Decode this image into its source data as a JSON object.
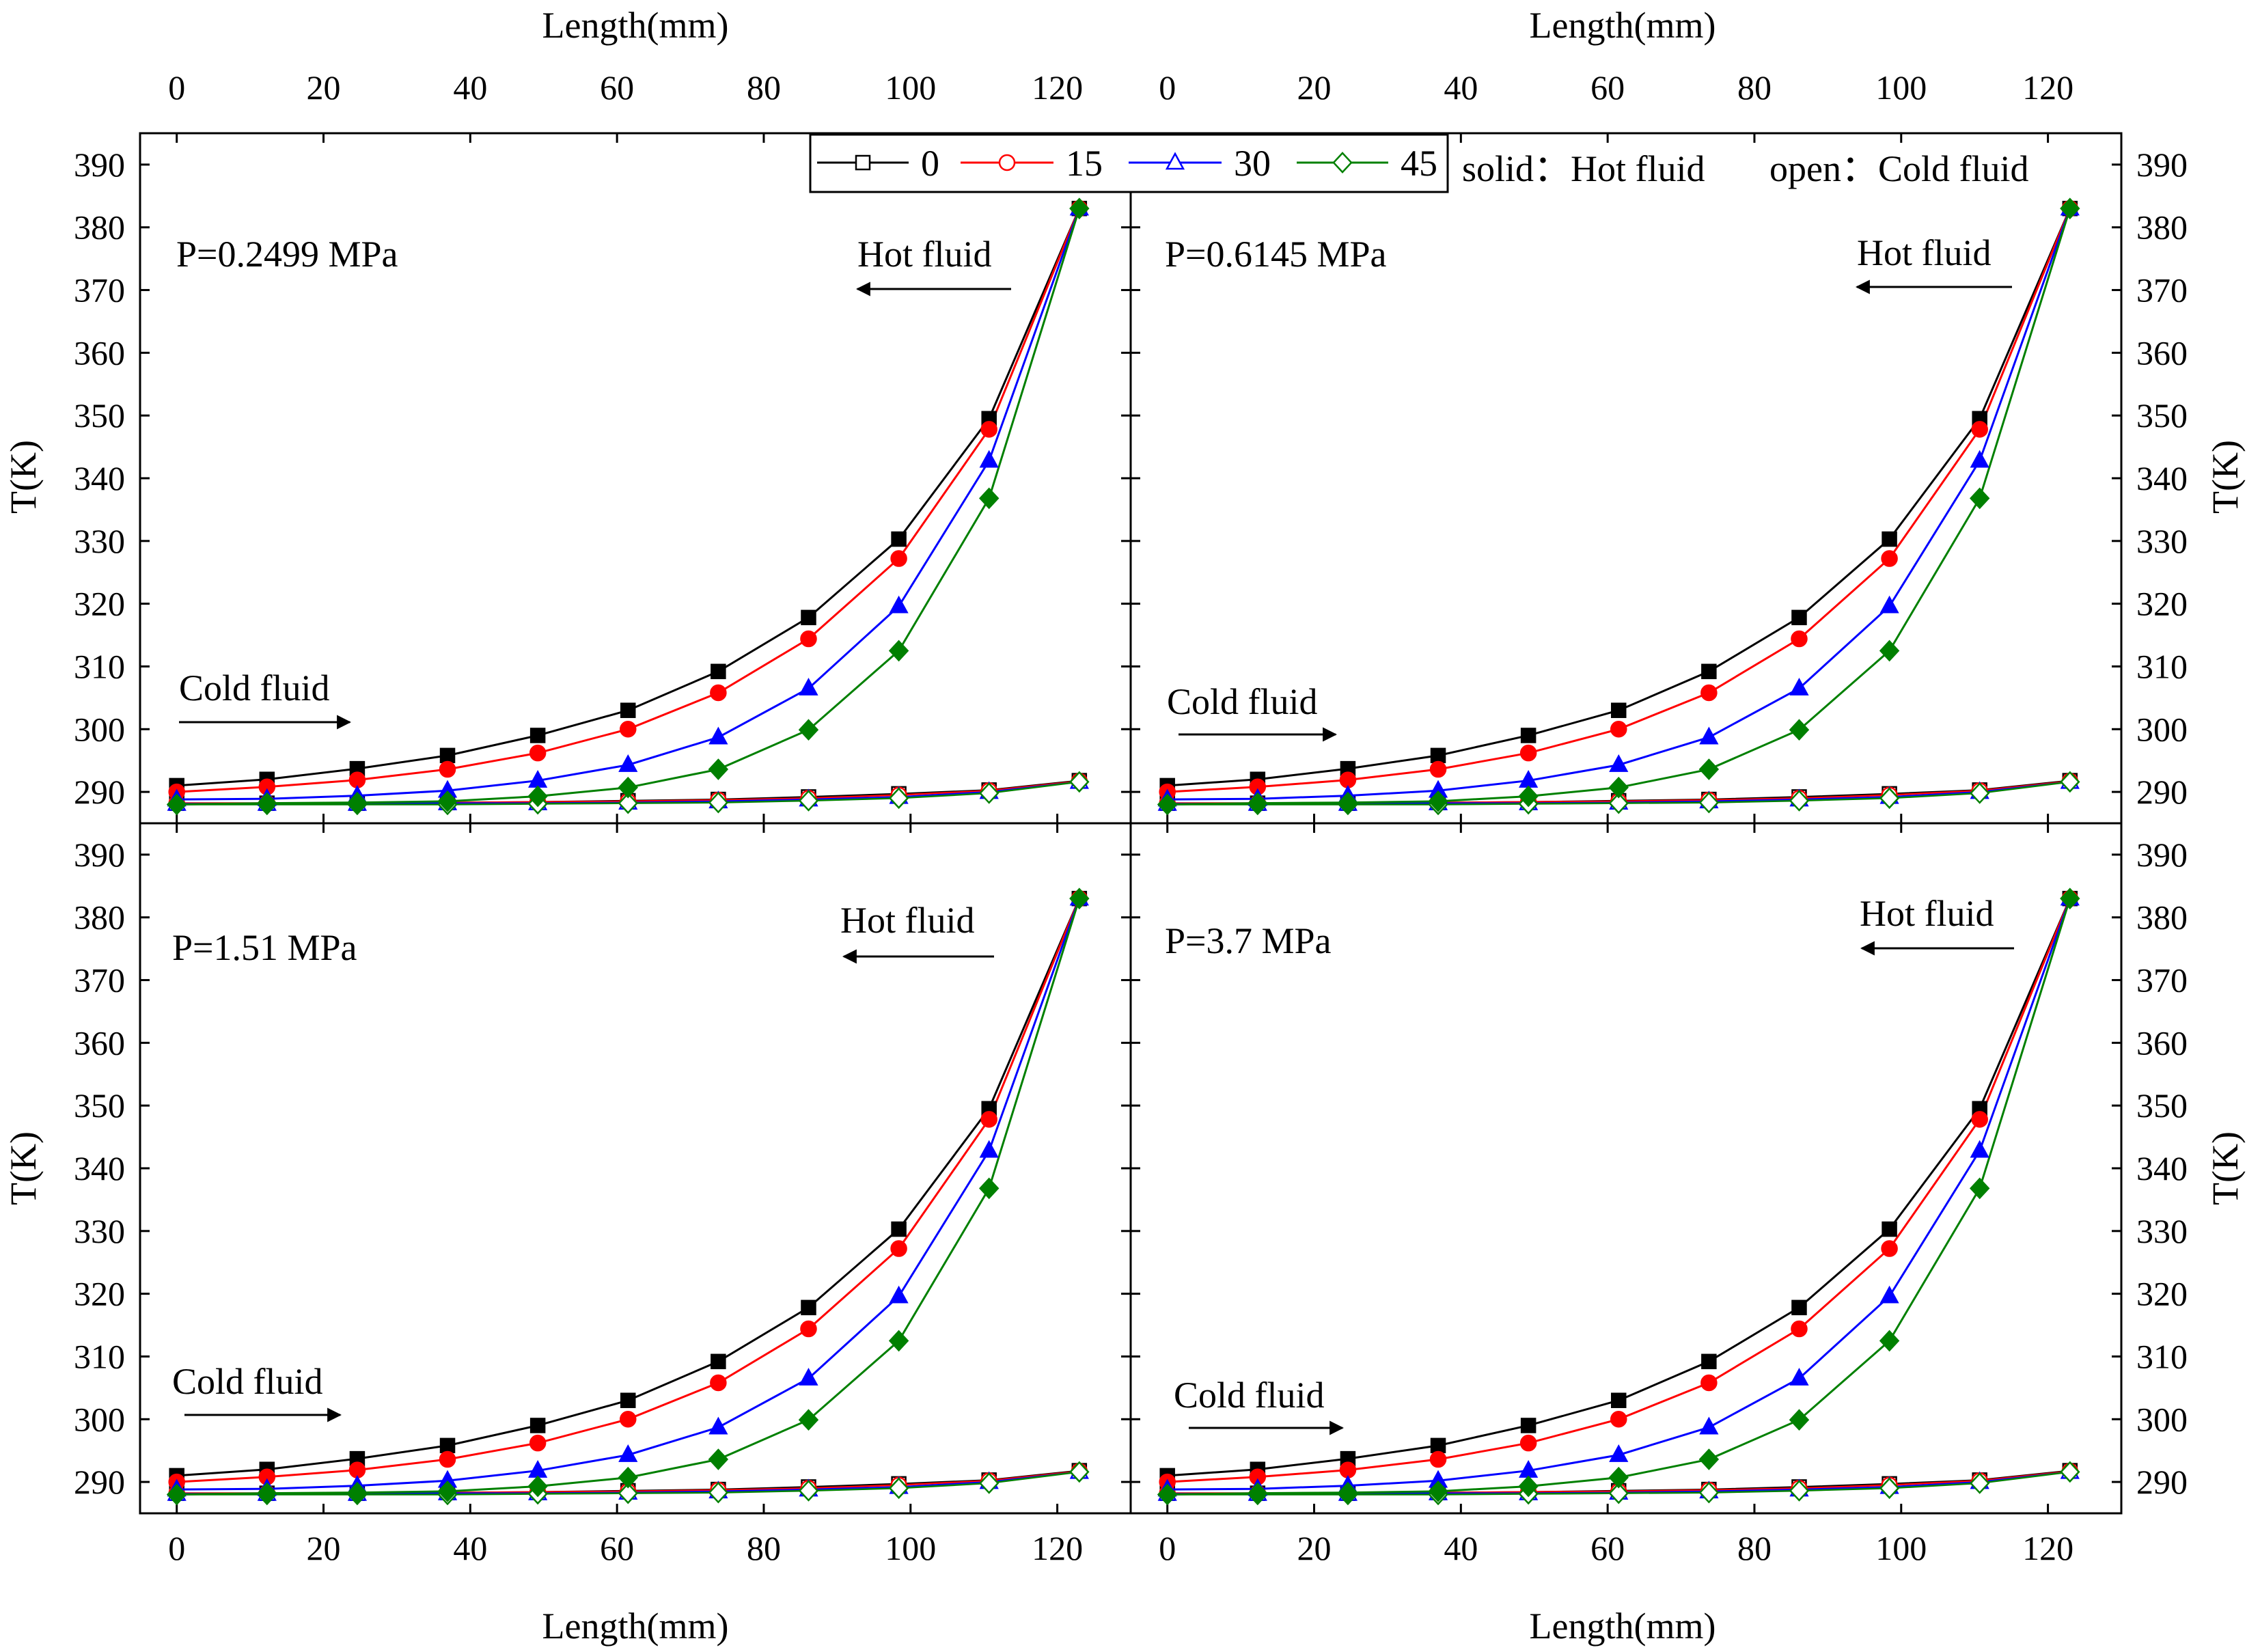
{
  "x_label": "Length(mm)",
  "y_label": "T(K)",
  "legend": {
    "entries": [
      "0",
      "15",
      "30",
      "45"
    ],
    "note_solid": "solid：Hot fluid",
    "note_open": "open：Cold fluid"
  },
  "colors": {
    "0": "#000000",
    "15": "#ff0000",
    "30": "#0000ff",
    "45": "#008000",
    "cold_line": "#4a8fa0"
  },
  "chart_data": {
    "type": "line",
    "xlim": [
      -5,
      130
    ],
    "ylim": [
      285,
      395
    ],
    "xticks": [
      0,
      20,
      40,
      60,
      80,
      100,
      120
    ],
    "yticks": [
      290,
      300,
      310,
      320,
      330,
      340,
      350,
      360,
      370,
      380,
      390
    ],
    "x": [
      0,
      12.3,
      24.6,
      36.9,
      49.2,
      61.5,
      73.8,
      86.1,
      98.4,
      110.7,
      123
    ],
    "panels": [
      {
        "label": "P=0.2499 MPa",
        "hot_label": "Hot fluid",
        "cold_label": "Cold fluid",
        "hot": [
          {
            "name": "0",
            "values": [
              291,
              292,
              293.7,
              295.8,
              299,
              303,
              309.2,
              317.8,
              330.3,
              349.5,
              383
            ]
          },
          {
            "name": "15",
            "values": [
              290,
              290.8,
              291.9,
              293.6,
              296.2,
              300,
              305.8,
              314.4,
              327.2,
              347.8,
              383
            ]
          },
          {
            "name": "30",
            "values": [
              288.8,
              288.9,
              289.4,
              290.2,
              291.8,
              294.3,
              298.7,
              306.5,
              319.6,
              342.8,
              383
            ]
          },
          {
            "name": "45",
            "values": [
              288,
              288.2,
              288.3,
              288.5,
              289.3,
              290.7,
              293.6,
              299.9,
              312.5,
              336.8,
              383
            ]
          }
        ],
        "cold": [
          {
            "name": "0",
            "values": [
              288.2,
              288.2,
              288.2,
              288.3,
              288.4,
              288.6,
              288.8,
              289.2,
              289.7,
              290.3,
              291.8
            ]
          },
          {
            "name": "15",
            "values": [
              288.2,
              288.2,
              288.2,
              288.3,
              288.4,
              288.5,
              288.7,
              289,
              289.5,
              290.2,
              291.7
            ]
          },
          {
            "name": "30",
            "values": [
              288.1,
              288.1,
              288.1,
              288.2,
              288.2,
              288.3,
              288.5,
              288.8,
              289.2,
              290,
              291.6
            ]
          },
          {
            "name": "45",
            "values": [
              288,
              288,
              288,
              288,
              288.1,
              288.2,
              288.3,
              288.6,
              289,
              289.8,
              291.6
            ]
          }
        ]
      },
      {
        "label": "P=0.6145 MPa",
        "hot_label": "Hot fluid",
        "cold_label": "Cold fluid",
        "hot": [
          {
            "name": "0",
            "values": [
              291,
              292,
              293.7,
              295.8,
              299,
              303,
              309.2,
              317.8,
              330.3,
              349.5,
              383
            ]
          },
          {
            "name": "15",
            "values": [
              290,
              290.8,
              291.9,
              293.6,
              296.2,
              300,
              305.8,
              314.4,
              327.2,
              347.8,
              383
            ]
          },
          {
            "name": "30",
            "values": [
              288.8,
              288.9,
              289.4,
              290.2,
              291.8,
              294.3,
              298.7,
              306.5,
              319.6,
              342.8,
              383
            ]
          },
          {
            "name": "45",
            "values": [
              288,
              288.2,
              288.3,
              288.5,
              289.3,
              290.7,
              293.6,
              299.9,
              312.5,
              336.8,
              383
            ]
          }
        ],
        "cold": [
          {
            "name": "0",
            "values": [
              288.2,
              288.2,
              288.2,
              288.3,
              288.4,
              288.6,
              288.8,
              289.2,
              289.7,
              290.3,
              291.8
            ]
          },
          {
            "name": "15",
            "values": [
              288.2,
              288.2,
              288.2,
              288.3,
              288.4,
              288.5,
              288.7,
              289,
              289.5,
              290.2,
              291.7
            ]
          },
          {
            "name": "30",
            "values": [
              288.1,
              288.1,
              288.1,
              288.2,
              288.2,
              288.3,
              288.5,
              288.8,
              289.2,
              290,
              291.6
            ]
          },
          {
            "name": "45",
            "values": [
              288,
              288,
              288,
              288,
              288.1,
              288.2,
              288.3,
              288.6,
              289,
              289.8,
              291.6
            ]
          }
        ]
      },
      {
        "label": "P=1.51 MPa",
        "hot_label": "Hot fluid",
        "cold_label": "Cold fluid",
        "hot": [
          {
            "name": "0",
            "values": [
              291,
              292,
              293.7,
              295.8,
              299,
              303,
              309.2,
              317.8,
              330.3,
              349.5,
              383
            ]
          },
          {
            "name": "15",
            "values": [
              290,
              290.8,
              291.9,
              293.6,
              296.2,
              300,
              305.8,
              314.4,
              327.2,
              347.8,
              383
            ]
          },
          {
            "name": "30",
            "values": [
              288.8,
              288.9,
              289.4,
              290.2,
              291.8,
              294.3,
              298.7,
              306.5,
              319.6,
              342.8,
              383
            ]
          },
          {
            "name": "45",
            "values": [
              288,
              288.2,
              288.3,
              288.5,
              289.3,
              290.7,
              293.6,
              299.9,
              312.5,
              336.8,
              383
            ]
          }
        ],
        "cold": [
          {
            "name": "0",
            "values": [
              288.2,
              288.2,
              288.2,
              288.3,
              288.4,
              288.6,
              288.8,
              289.2,
              289.7,
              290.3,
              291.8
            ]
          },
          {
            "name": "15",
            "values": [
              288.2,
              288.2,
              288.2,
              288.3,
              288.4,
              288.5,
              288.7,
              289,
              289.5,
              290.2,
              291.7
            ]
          },
          {
            "name": "30",
            "values": [
              288.1,
              288.1,
              288.1,
              288.2,
              288.2,
              288.3,
              288.5,
              288.8,
              289.2,
              290,
              291.6
            ]
          },
          {
            "name": "45",
            "values": [
              288,
              288,
              288,
              288,
              288.1,
              288.2,
              288.3,
              288.6,
              289,
              289.8,
              291.6
            ]
          }
        ]
      },
      {
        "label": "P=3.7 MPa",
        "hot_label": "Hot fluid",
        "cold_label": "Cold fluid",
        "hot": [
          {
            "name": "0",
            "values": [
              291,
              292,
              293.7,
              295.8,
              299,
              303,
              309.2,
              317.8,
              330.3,
              349.5,
              383
            ]
          },
          {
            "name": "15",
            "values": [
              290,
              290.8,
              291.9,
              293.6,
              296.2,
              300,
              305.8,
              314.4,
              327.2,
              347.8,
              383
            ]
          },
          {
            "name": "30",
            "values": [
              288.8,
              288.9,
              289.4,
              290.2,
              291.8,
              294.3,
              298.7,
              306.5,
              319.6,
              342.8,
              383
            ]
          },
          {
            "name": "45",
            "values": [
              288,
              288.2,
              288.3,
              288.5,
              289.3,
              290.7,
              293.6,
              299.9,
              312.5,
              336.8,
              383
            ]
          }
        ],
        "cold": [
          {
            "name": "0",
            "values": [
              288.2,
              288.2,
              288.2,
              288.3,
              288.4,
              288.6,
              288.8,
              289.2,
              289.7,
              290.3,
              291.8
            ]
          },
          {
            "name": "15",
            "values": [
              288.2,
              288.2,
              288.2,
              288.3,
              288.4,
              288.5,
              288.7,
              289,
              289.5,
              290.2,
              291.7
            ]
          },
          {
            "name": "30",
            "values": [
              288.1,
              288.1,
              288.1,
              288.2,
              288.2,
              288.3,
              288.5,
              288.8,
              289.2,
              290,
              291.6
            ]
          },
          {
            "name": "45",
            "values": [
              288,
              288,
              288,
              288,
              288.1,
              288.2,
              288.3,
              288.6,
              289,
              289.8,
              291.6
            ]
          }
        ]
      }
    ]
  }
}
